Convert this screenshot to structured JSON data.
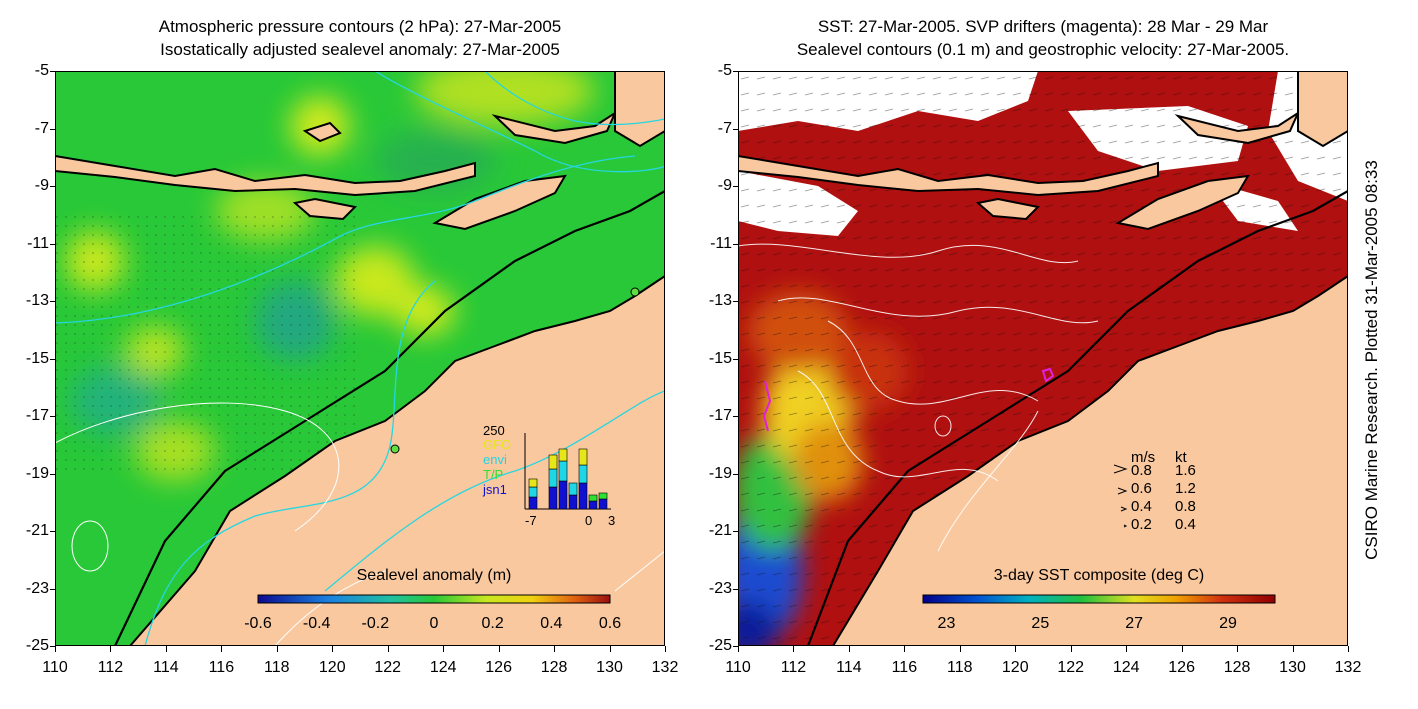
{
  "left_panel": {
    "title_line1": "Atmospheric pressure contours (2 hPa): 27-Mar-2005",
    "title_line2": "Isostatically adjusted sealevel anomaly: 27-Mar-2005",
    "colorbar": {
      "label": "Sealevel anomaly (m)",
      "ticks": [
        "-0.6",
        "-0.4",
        "-0.2",
        "0",
        "0.2",
        "0.4",
        "0.6"
      ],
      "range": [
        -0.6,
        0.6
      ]
    },
    "inset": {
      "ymax_label": "250",
      "satellites": [
        "GFO",
        "envi",
        "T/P",
        "jsn1"
      ],
      "satellite_colors": [
        "#e6e61a",
        "#1ed6e6",
        "#30e030",
        "#1010d0"
      ],
      "xticks": [
        "-7",
        "0",
        "3"
      ]
    }
  },
  "right_panel": {
    "title_line1": "SST: 27-Mar-2005. SVP drifters (magenta): 28 Mar - 29 Mar",
    "title_line2": "Sealevel contours (0.1 m) and geostrophic velocity: 27-Mar-2005.",
    "colorbar": {
      "label": "3-day SST composite (deg C)",
      "ticks": [
        "23",
        "25",
        "27",
        "29"
      ],
      "range": [
        22.5,
        30
      ]
    },
    "velocity_key": {
      "header_ms": "m/s",
      "header_kt": "kt",
      "rows": [
        {
          "ms": "0.8",
          "kt": "1.6"
        },
        {
          "ms": "0.6",
          "kt": "1.2"
        },
        {
          "ms": "0.4",
          "kt": "0.8"
        },
        {
          "ms": "0.2",
          "kt": "0.4"
        }
      ]
    }
  },
  "axes": {
    "lat_ticks": [
      "-5",
      "-7",
      "-9",
      "-11",
      "-13",
      "-15",
      "-17",
      "-19",
      "-21",
      "-23",
      "-25"
    ],
    "lon_ticks": [
      "110",
      "112",
      "114",
      "116",
      "118",
      "120",
      "122",
      "124",
      "126",
      "128",
      "130",
      "132"
    ]
  },
  "credit": "CSIRO Marine Research. Plotted 31-Mar-2005 08:33",
  "colors": {
    "land": "#f9c89f",
    "sealevel_mid": "#28c838",
    "sst_warm": "#b01010",
    "drifter": "#e020e0"
  }
}
